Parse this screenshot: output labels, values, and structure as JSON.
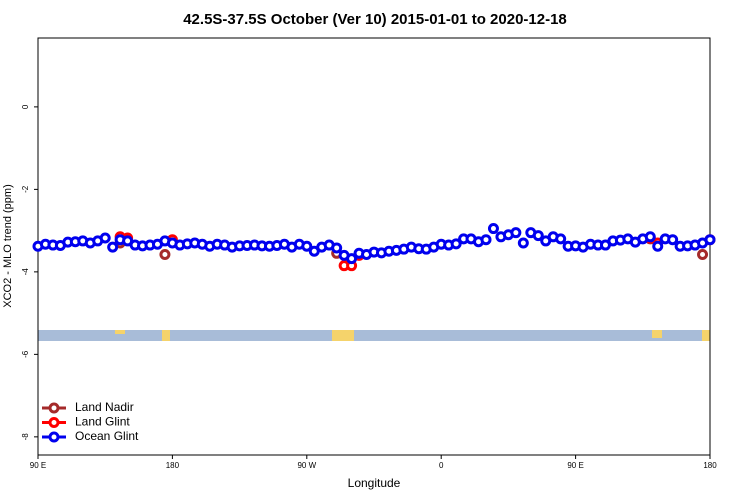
{
  "chart_data": {
    "type": "scatter",
    "title": "42.5S-37.5S October (Ver 10)   2015-01-01 to 2020-12-18",
    "x_label": "Longitude",
    "y_label": "XCO2 - MLO trend (ppm)",
    "xlim": [
      90,
      540
    ],
    "ylim": [
      -8.44,
      1.67
    ],
    "xticks": [
      {
        "value": 90,
        "label": "90 E"
      },
      180,
      {
        "value": 270,
        "label": "90 W"
      },
      {
        "value": 360,
        "label": "0"
      },
      {
        "value": 450,
        "label": "90 E"
      },
      {
        "value": 540,
        "label": "180"
      }
    ],
    "yticks": [
      0,
      -2,
      -4,
      -6,
      -8
    ],
    "legend": "bottom-left",
    "series": [
      {
        "name": "Land Nadir",
        "color": "#a52a2a",
        "x": [
          145,
          175,
          290,
          500,
          535
        ],
        "values": [
          -3.3,
          -3.58,
          -3.55,
          -3.2,
          -3.58
        ]
      },
      {
        "name": "Land Glint",
        "color": "#ff0000",
        "x": [
          145,
          150,
          180,
          295,
          300,
          305,
          500,
          505,
          540
        ],
        "values": [
          -3.15,
          -3.18,
          -3.22,
          -3.85,
          -3.85,
          -3.6,
          -3.18,
          -3.3,
          -3.22
        ]
      },
      {
        "name": "Ocean Glint",
        "color": "#0000ee",
        "x": [
          90,
          95,
          100,
          105,
          110,
          115,
          120,
          125,
          130,
          135,
          140,
          145,
          150,
          155,
          160,
          165,
          170,
          175,
          180,
          185,
          190,
          195,
          200,
          205,
          210,
          215,
          220,
          225,
          230,
          235,
          240,
          245,
          250,
          255,
          260,
          265,
          270,
          275,
          280,
          285,
          290,
          295,
          300,
          305,
          310,
          315,
          320,
          325,
          330,
          335,
          340,
          345,
          350,
          355,
          360,
          365,
          370,
          375,
          380,
          385,
          390,
          395,
          400,
          405,
          410,
          415,
          420,
          425,
          430,
          435,
          440,
          445,
          450,
          455,
          460,
          465,
          470,
          475,
          480,
          485,
          490,
          495,
          500,
          505,
          510,
          515,
          520,
          525,
          530,
          535,
          540
        ],
        "values": [
          -3.38,
          -3.33,
          -3.35,
          -3.36,
          -3.28,
          -3.27,
          -3.25,
          -3.3,
          -3.25,
          -3.18,
          -3.4,
          -3.22,
          -3.25,
          -3.35,
          -3.37,
          -3.35,
          -3.33,
          -3.25,
          -3.3,
          -3.35,
          -3.32,
          -3.3,
          -3.33,
          -3.38,
          -3.33,
          -3.35,
          -3.4,
          -3.37,
          -3.36,
          -3.35,
          -3.37,
          -3.38,
          -3.36,
          -3.33,
          -3.4,
          -3.33,
          -3.38,
          -3.5,
          -3.4,
          -3.35,
          -3.42,
          -3.6,
          -3.68,
          -3.55,
          -3.58,
          -3.52,
          -3.54,
          -3.5,
          -3.48,
          -3.45,
          -3.4,
          -3.44,
          -3.45,
          -3.4,
          -3.33,
          -3.35,
          -3.32,
          -3.2,
          -3.2,
          -3.27,
          -3.22,
          -2.95,
          -3.15,
          -3.1,
          -3.05,
          -3.3,
          -3.05,
          -3.12,
          -3.25,
          -3.15,
          -3.2,
          -3.38,
          -3.37,
          -3.4,
          -3.33,
          -3.35,
          -3.35,
          -3.25,
          -3.23,
          -3.2,
          -3.28,
          -3.2,
          -3.15,
          -3.38,
          -3.2,
          -3.22,
          -3.38,
          -3.37,
          -3.35,
          -3.3,
          -3.22
        ]
      }
    ]
  }
}
